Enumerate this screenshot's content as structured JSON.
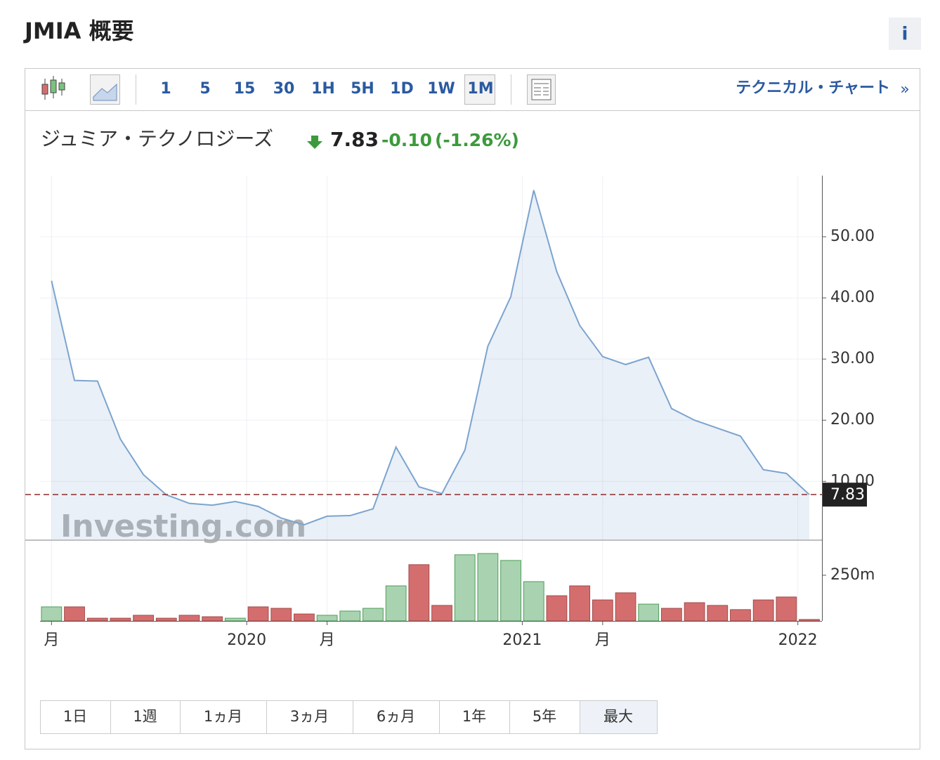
{
  "header": {
    "title": "JMIA 概要",
    "info": "i"
  },
  "toolbar": {
    "intervals": [
      "1",
      "5",
      "15",
      "30",
      "1H",
      "5H",
      "1D",
      "1W",
      "1M"
    ],
    "selected_index": 8,
    "link": "テクニカル・チャート",
    "link_arrow": "»"
  },
  "quote": {
    "name": "ジュミア・テクノロジーズ",
    "change": "-0.10",
    "change_pct": "(-1.26%)"
  },
  "chart_data": [
    {
      "type": "area",
      "watermark": "Investing.com",
      "series": [
        {
          "color": "#7ba4cf",
          "values": [
            42.8,
            26.5,
            26.4,
            16.9,
            11.1,
            7.8,
            6.4,
            6.1,
            6.7,
            5.9,
            4.0,
            2.9,
            4.3,
            4.4,
            5.5,
            15.6,
            9.1,
            8.0,
            15.1,
            32.1,
            40.2,
            57.6,
            44.3,
            35.5,
            30.4,
            29.1,
            30.3,
            21.9,
            20.0,
            18.7,
            17.4,
            11.9,
            11.3,
            7.83
          ]
        }
      ],
      "xlim": [
        -0.5,
        33.55
      ],
      "xticks": [
        {
          "value": 0,
          "label": "月"
        },
        {
          "value": 8.5,
          "label": "2020"
        },
        {
          "value": 12,
          "label": "月"
        },
        {
          "value": 20.5,
          "label": "2021"
        },
        {
          "value": 24,
          "label": "月"
        },
        {
          "value": 32.5,
          "label": "2022"
        }
      ],
      "ylim": [
        0.5,
        60
      ],
      "yticks": [
        {
          "value": 10,
          "label": "10.00"
        },
        {
          "value": 20,
          "label": "20.00"
        },
        {
          "value": 30,
          "label": "30.00"
        },
        {
          "value": 40,
          "label": "40.00"
        },
        {
          "value": 50,
          "label": "50.00"
        }
      ],
      "last_line": true,
      "grid": true
    },
    {
      "type": "bar",
      "values": [
        77,
        77,
        15,
        15,
        31,
        15,
        31,
        23,
        15,
        77,
        69,
        38,
        31,
        54,
        69,
        192,
        308,
        85,
        362,
        369,
        331,
        215,
        138,
        192,
        115,
        154,
        92,
        69,
        100,
        85,
        62,
        115,
        131,
        8
      ],
      "colors": [
        "#a9d3b0",
        "#d46e6e",
        "#d46e6e",
        "#d46e6e",
        "#d46e6e",
        "#d46e6e",
        "#d46e6e",
        "#d46e6e",
        "#a9d3b0",
        "#d46e6e",
        "#d46e6e",
        "#d46e6e",
        "#a9d3b0",
        "#a9d3b0",
        "#a9d3b0",
        "#a9d3b0",
        "#d46e6e",
        "#d46e6e",
        "#a9d3b0",
        "#a9d3b0",
        "#a9d3b0",
        "#a9d3b0",
        "#d46e6e",
        "#d46e6e",
        "#d46e6e",
        "#d46e6e",
        "#a9d3b0",
        "#d46e6e",
        "#d46e6e",
        "#d46e6e",
        "#d46e6e",
        "#d46e6e",
        "#d46e6e",
        "#d46e6e"
      ],
      "ylim": [
        0,
        419
      ],
      "yticks": [
        {
          "value": 250,
          "label": "250m"
        }
      ]
    }
  ],
  "ranges": {
    "labels": [
      "1日",
      "1週",
      "1ヵ月",
      "3ヵ月",
      "6ヵ月",
      "1年",
      "5年",
      "最大"
    ],
    "selected_index": 7
  }
}
